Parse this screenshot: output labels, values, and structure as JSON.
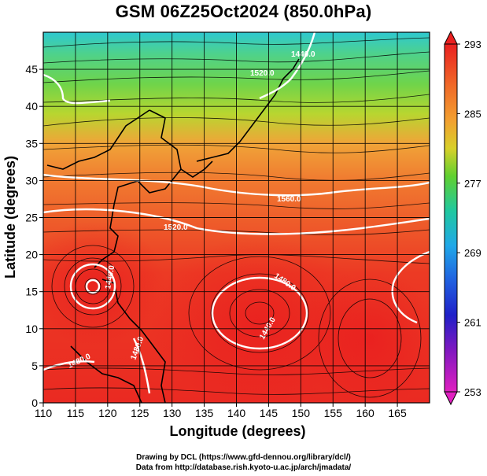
{
  "title": "GSM 06Z25Oct2024 (850.0hPa)",
  "map": {
    "xlabel": "Longitude (degrees)",
    "ylabel": "Latitude  (degrees)",
    "xticks": [
      110,
      115,
      120,
      125,
      130,
      135,
      140,
      145,
      150,
      155,
      160,
      165
    ],
    "yticks": [
      0,
      5,
      10,
      15,
      20,
      25,
      30,
      35,
      40,
      45
    ],
    "xlim": [
      110,
      170
    ],
    "ylim": [
      0,
      50
    ],
    "grid": true
  },
  "colorbar": {
    "labels": [
      "293",
      "285",
      "277",
      "269",
      "261",
      "253"
    ],
    "range": [
      253,
      293
    ]
  },
  "contour_labels": [
    "1440.0",
    "1520.0",
    "1560.0",
    "1520.0",
    "1440.0",
    "1480.0",
    "1440.0",
    "1480.0",
    "1480.0"
  ],
  "footer": {
    "line1": "Drawing by DCL (https://www.gfd-dennou.org/library/dcl/)",
    "line2": "Data from http://database.rish.kyoto-u.ac.jp/arch/jmadata/"
  }
}
